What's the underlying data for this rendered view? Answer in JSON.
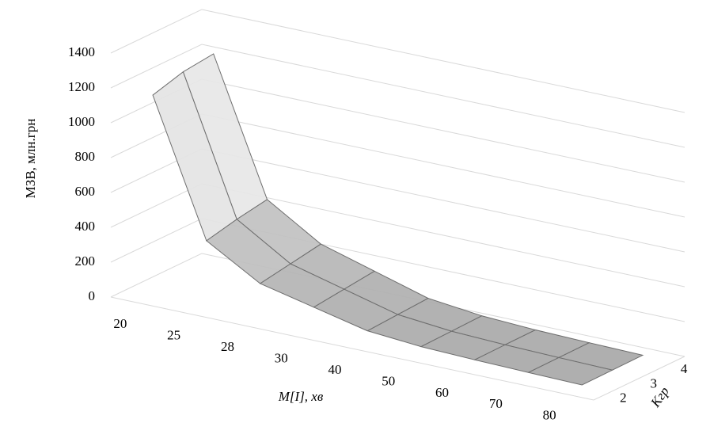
{
  "chart_data": {
    "type": "surface3d",
    "y_label": "МЗВ, млн.грн",
    "x_label": "M[I], хв",
    "z_label": "Kгр",
    "categories": [
      "20",
      "25",
      "28",
      "30",
      "40",
      "50",
      "60",
      "70",
      "80"
    ],
    "series": [
      {
        "name": "2",
        "values": [
          1150,
          380,
          200,
          130,
          60,
          35,
          25,
          18,
          12
        ]
      },
      {
        "name": "3",
        "values": [
          1200,
          420,
          230,
          150,
          70,
          40,
          28,
          20,
          14
        ]
      },
      {
        "name": "4",
        "values": [
          1220,
          450,
          260,
          170,
          80,
          45,
          30,
          22,
          16
        ]
      }
    ],
    "ylim": [
      0,
      1400
    ],
    "yticks": [
      0,
      200,
      400,
      600,
      800,
      1000,
      1200,
      1400
    ],
    "grid": true,
    "colors": [
      "#9a9a9a",
      "#eeeeee"
    ]
  }
}
